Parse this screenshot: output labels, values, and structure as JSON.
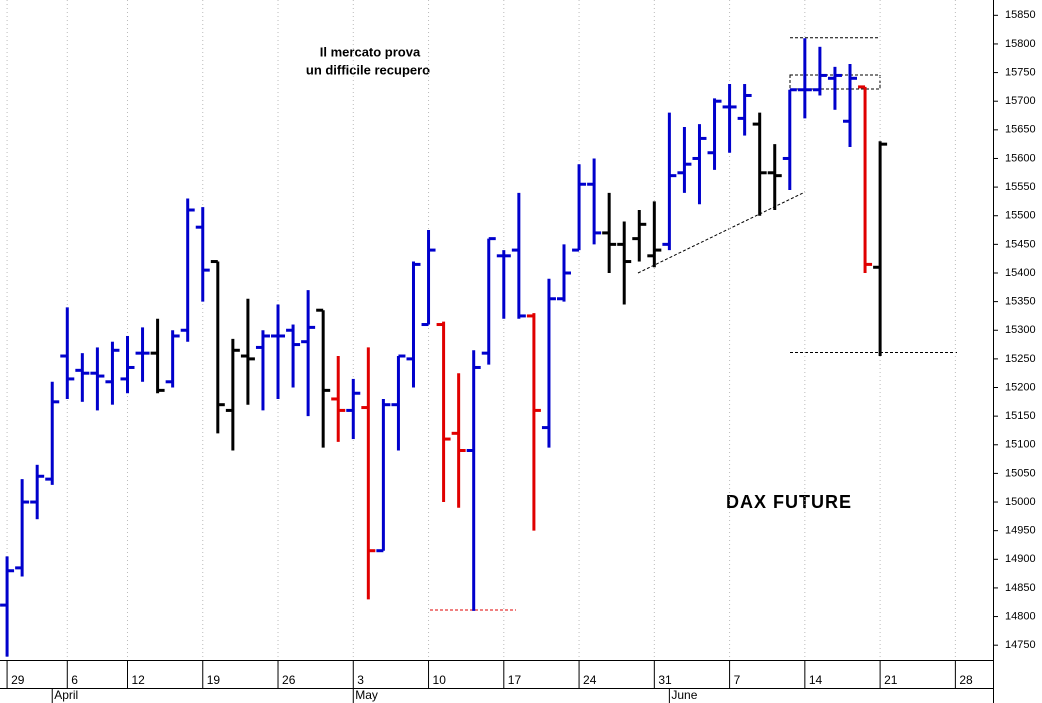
{
  "chart_data": {
    "type": "ohlc",
    "annotations": [
      "Il mercato prova",
      "un difficile recupero"
    ],
    "title": "DAX FUTURE",
    "ylim": [
      14725,
      15875
    ],
    "yticks": [
      14750,
      14800,
      14850,
      14900,
      14950,
      15000,
      15050,
      15100,
      15150,
      15200,
      15250,
      15300,
      15350,
      15400,
      15450,
      15500,
      15550,
      15600,
      15650,
      15700,
      15750,
      15800,
      15850
    ],
    "xlim": [
      -0.47,
      65.5
    ],
    "xticks": [
      {
        "value": 0,
        "label": "29"
      },
      {
        "value": 4,
        "label": "6"
      },
      {
        "value": 8,
        "label": "12"
      },
      {
        "value": 13,
        "label": "19"
      },
      {
        "value": 18,
        "label": "26"
      },
      {
        "value": 23,
        "label": "3"
      },
      {
        "value": 28,
        "label": "10"
      },
      {
        "value": 33,
        "label": "17"
      },
      {
        "value": 38,
        "label": "24"
      },
      {
        "value": 43,
        "label": "31"
      },
      {
        "value": 48,
        "label": "7"
      },
      {
        "value": 53,
        "label": "14"
      },
      {
        "value": 58,
        "label": "21"
      },
      {
        "value": 63,
        "label": "28"
      }
    ],
    "months": [
      {
        "value": 3,
        "label": "April"
      },
      {
        "value": 23,
        "label": "May"
      },
      {
        "value": 44,
        "label": "June"
      }
    ],
    "grid": true,
    "open": [
      14820,
      14885,
      15000,
      15040,
      15255,
      15230,
      15225,
      15210,
      15215,
      15260,
      15260,
      15210,
      15300,
      15480,
      15420,
      15160,
      15255,
      15270,
      15290,
      15300,
      15280,
      15335,
      15180,
      15160,
      15165,
      14915,
      15170,
      15250,
      15310,
      15310,
      15120,
      15090,
      15260,
      15430,
      15440,
      15325,
      15130,
      15355,
      15440,
      15555,
      15470,
      15450,
      15460,
      15430,
      15450,
      15575,
      15600,
      15610,
      15690,
      15670,
      15660,
      15575,
      15600,
      15720,
      15720,
      15740,
      15665,
      15725,
      15410
    ],
    "high": [
      14905,
      15040,
      15065,
      15210,
      15340,
      15260,
      15270,
      15280,
      15290,
      15305,
      15320,
      15300,
      15530,
      15515,
      15420,
      15285,
      15355,
      15300,
      15345,
      15310,
      15370,
      15335,
      15255,
      15215,
      15270,
      15180,
      15255,
      15420,
      15475,
      15315,
      15225,
      15265,
      15460,
      15440,
      15540,
      15330,
      15390,
      15450,
      15590,
      15600,
      15540,
      15490,
      15510,
      15525,
      15680,
      15655,
      15660,
      15705,
      15730,
      15730,
      15680,
      15625,
      15720,
      15810,
      15795,
      15760,
      15765,
      15725,
      15630
    ],
    "low": [
      14730,
      14870,
      14970,
      15030,
      15180,
      15175,
      15160,
      15170,
      15190,
      15210,
      15190,
      15200,
      15280,
      15350,
      15120,
      15090,
      15170,
      15160,
      15180,
      15200,
      15150,
      15095,
      15105,
      15110,
      14830,
      14915,
      15090,
      15200,
      15310,
      15000,
      14990,
      14810,
      15240,
      15320,
      15320,
      14950,
      15095,
      15350,
      15440,
      15450,
      15400,
      15345,
      15420,
      15410,
      15440,
      15540,
      15520,
      15580,
      15610,
      15640,
      15500,
      15510,
      15545,
      15670,
      15710,
      15685,
      15620,
      15400,
      15255
    ],
    "close": [
      14880,
      15000,
      15045,
      15175,
      15215,
      15225,
      15220,
      15265,
      15235,
      15260,
      15195,
      15290,
      15510,
      15405,
      15170,
      15265,
      15250,
      15290,
      15290,
      15275,
      15305,
      15195,
      15160,
      15190,
      14915,
      15170,
      15255,
      15415,
      15440,
      15110,
      15090,
      15235,
      15460,
      15430,
      15325,
      15160,
      15355,
      15400,
      15555,
      15470,
      15450,
      15420,
      15485,
      15440,
      15570,
      15590,
      15635,
      15700,
      15690,
      15710,
      15575,
      15570,
      15720,
      15720,
      15745,
      15745,
      15740,
      15415,
      15625
    ],
    "colors": [
      "#0000cc",
      "#0000cc",
      "#0000cc",
      "#0000cc",
      "#0000cc",
      "#0000cc",
      "#0000cc",
      "#0000cc",
      "#0000cc",
      "#0000cc",
      "#000000",
      "#0000cc",
      "#0000cc",
      "#0000cc",
      "#000000",
      "#000000",
      "#000000",
      "#0000cc",
      "#0000cc",
      "#0000cc",
      "#0000cc",
      "#000000",
      "#e00000",
      "#0000cc",
      "#e00000",
      "#0000cc",
      "#0000cc",
      "#0000cc",
      "#0000cc",
      "#e00000",
      "#e00000",
      "#0000cc",
      "#0000cc",
      "#0000cc",
      "#0000cc",
      "#e00000",
      "#0000cc",
      "#0000cc",
      "#0000cc",
      "#0000cc",
      "#000000",
      "#000000",
      "#000000",
      "#000000",
      "#0000cc",
      "#0000cc",
      "#0000cc",
      "#0000cc",
      "#0000cc",
      "#0000cc",
      "#000000",
      "#000000",
      "#0000cc",
      "#0000cc",
      "#0000cc",
      "#0000cc",
      "#0000cc",
      "#e00000",
      "#000000"
    ]
  }
}
